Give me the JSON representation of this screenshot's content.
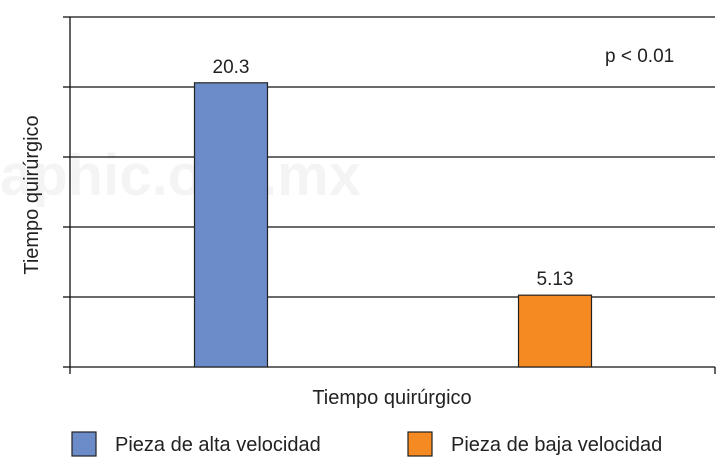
{
  "chart_data": {
    "type": "bar",
    "categories": [
      "Pieza de alta velocidad",
      "Pieza de baja velocidad"
    ],
    "values": [
      20.3,
      5.13
    ],
    "data_labels": [
      "20.3",
      "5.13"
    ],
    "colors": [
      "#6b8cc8",
      "#f58a23"
    ],
    "title": "",
    "xlabel": "Tiempo quirúrgico",
    "ylabel": "Tiempo quirúrgico",
    "ylim": [
      0,
      25
    ],
    "ytick_step": 5,
    "ytick_labels_shown": false,
    "grid": true,
    "legend_position": "bottom",
    "annotation": "p < 0.01",
    "watermark": "aphic.org.mx"
  }
}
